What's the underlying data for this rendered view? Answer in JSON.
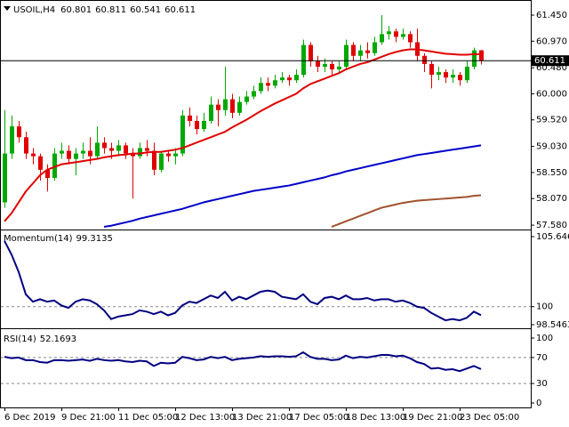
{
  "chart_data": [
    {
      "type": "candlestick",
      "title": "USOIL,H4",
      "categories": [
        "6 Dec 2019",
        null,
        null,
        null,
        null,
        null,
        null,
        null,
        "9 Dec 21:00",
        null,
        null,
        null,
        null,
        null,
        null,
        null,
        "11 Dec 05:00",
        null,
        null,
        null,
        null,
        null,
        null,
        null,
        "12 Dec 13:00",
        null,
        null,
        null,
        null,
        null,
        null,
        null,
        "13 Dec 21:00",
        null,
        null,
        null,
        null,
        null,
        null,
        null,
        "17 Dec 05:00",
        null,
        null,
        null,
        null,
        null,
        null,
        null,
        "18 Dec 13:00",
        null,
        null,
        null,
        null,
        null,
        null,
        null,
        "19 Dec 21:00",
        null,
        null,
        null,
        null,
        null,
        null,
        null,
        "23 Dec 05:00",
        null,
        null,
        null
      ],
      "open": [
        58.0,
        58.9,
        59.4,
        59.2,
        58.9,
        58.85,
        58.6,
        58.45,
        58.9,
        58.95,
        58.8,
        58.9,
        58.95,
        58.85,
        59.1,
        59.0,
        58.95,
        59.05,
        58.9,
        58.85,
        59.0,
        58.95,
        58.6,
        58.9,
        58.85,
        58.9,
        59.6,
        59.5,
        59.35,
        59.5,
        59.8,
        59.7,
        59.9,
        59.65,
        59.85,
        59.95,
        60.05,
        60.2,
        60.15,
        60.25,
        60.3,
        60.25,
        60.35,
        60.9,
        60.6,
        60.5,
        60.55,
        60.45,
        60.5,
        60.9,
        60.7,
        60.8,
        60.75,
        60.95,
        61.1,
        61.15,
        61.05,
        61.1,
        60.95,
        60.7,
        60.55,
        60.35,
        60.4,
        60.3,
        60.35,
        60.25,
        60.5,
        60.801
      ],
      "high": [
        59.7,
        59.6,
        59.5,
        59.3,
        59.0,
        58.9,
        58.7,
        59.0,
        59.1,
        59.05,
        59.0,
        59.1,
        59.2,
        59.4,
        59.2,
        59.1,
        59.15,
        59.1,
        59.0,
        59.1,
        59.15,
        59.1,
        58.95,
        58.95,
        59.0,
        59.7,
        59.75,
        59.6,
        59.65,
        59.95,
        59.9,
        60.5,
        60.0,
        59.95,
        60.05,
        60.15,
        60.3,
        60.3,
        60.35,
        60.4,
        60.35,
        60.45,
        61.0,
        60.95,
        60.7,
        60.65,
        60.6,
        60.6,
        61.0,
        60.95,
        60.9,
        60.95,
        61.05,
        61.45,
        61.25,
        61.2,
        61.2,
        61.15,
        61.2,
        60.75,
        60.6,
        60.5,
        60.45,
        60.45,
        60.4,
        60.6,
        60.85,
        60.811
      ],
      "low": [
        57.9,
        58.8,
        59.1,
        58.8,
        58.7,
        58.4,
        58.2,
        58.4,
        58.8,
        58.7,
        58.5,
        58.8,
        58.7,
        58.8,
        58.9,
        58.8,
        58.85,
        58.8,
        58.07,
        58.8,
        58.85,
        58.5,
        58.55,
        58.75,
        58.7,
        58.85,
        59.4,
        59.25,
        59.3,
        59.45,
        59.4,
        59.6,
        59.55,
        59.6,
        59.8,
        59.9,
        60.0,
        60.05,
        60.1,
        60.2,
        60.15,
        60.2,
        60.3,
        60.5,
        60.4,
        60.4,
        60.35,
        60.4,
        60.45,
        60.6,
        60.6,
        60.65,
        60.7,
        60.9,
        61.0,
        60.95,
        61.0,
        60.85,
        60.6,
        60.4,
        60.1,
        60.25,
        60.2,
        60.2,
        60.15,
        60.2,
        60.45,
        60.541
      ],
      "close": [
        58.9,
        59.4,
        59.2,
        58.9,
        58.85,
        58.6,
        58.45,
        58.9,
        58.95,
        58.8,
        58.9,
        58.95,
        58.85,
        59.1,
        59.0,
        58.95,
        59.05,
        58.9,
        58.85,
        59.0,
        58.95,
        58.6,
        58.9,
        58.85,
        58.9,
        59.6,
        59.5,
        59.35,
        59.5,
        59.8,
        59.7,
        59.9,
        59.65,
        59.85,
        59.95,
        60.05,
        60.2,
        60.15,
        60.25,
        60.3,
        60.25,
        60.35,
        60.9,
        60.6,
        60.5,
        60.55,
        60.45,
        60.5,
        60.9,
        60.7,
        60.8,
        60.75,
        60.95,
        61.1,
        61.15,
        61.05,
        61.1,
        60.95,
        60.7,
        60.55,
        60.35,
        60.4,
        60.3,
        60.35,
        60.25,
        60.5,
        60.801,
        60.611
      ],
      "up_color": "#00a800",
      "down_color": "#e00000",
      "lines": [
        {
          "color": "#e00000",
          "values": [
            57.65,
            57.8,
            58.0,
            58.2,
            58.35,
            58.5,
            58.6,
            58.65,
            58.7,
            58.72,
            58.74,
            58.76,
            58.78,
            58.8,
            58.83,
            58.85,
            58.87,
            58.88,
            58.9,
            58.9,
            58.92,
            58.93,
            58.93,
            58.95,
            58.97,
            59.0,
            59.05,
            59.1,
            59.15,
            59.2,
            59.25,
            59.3,
            59.38,
            59.45,
            59.52,
            59.6,
            59.68,
            59.75,
            59.82,
            59.88,
            59.94,
            60.0,
            60.1,
            60.18,
            60.23,
            60.28,
            60.33,
            60.38,
            60.45,
            60.5,
            60.55,
            60.58,
            60.63,
            60.68,
            60.73,
            60.77,
            60.8,
            60.82,
            60.82,
            60.8,
            60.78,
            60.76,
            60.74,
            60.73,
            60.72,
            60.72,
            60.73,
            60.73
          ]
        },
        {
          "color": "#0000c8",
          "values": [
            null,
            null,
            null,
            null,
            null,
            null,
            null,
            null,
            null,
            null,
            null,
            null,
            null,
            null,
            57.55,
            57.57,
            57.6,
            57.63,
            57.66,
            57.7,
            57.73,
            57.76,
            57.79,
            57.82,
            57.85,
            57.88,
            57.92,
            57.96,
            58.0,
            58.03,
            58.06,
            58.09,
            58.12,
            58.15,
            58.18,
            58.21,
            58.23,
            58.25,
            58.27,
            58.29,
            58.31,
            58.34,
            58.37,
            58.4,
            58.43,
            58.46,
            58.5,
            58.53,
            58.57,
            58.6,
            58.63,
            58.66,
            58.69,
            58.72,
            58.75,
            58.78,
            58.81,
            58.84,
            58.87,
            58.89,
            58.91,
            58.93,
            58.95,
            58.97,
            58.99,
            59.01,
            59.03,
            59.05
          ]
        },
        {
          "color": "#a0522d",
          "values": [
            null,
            null,
            null,
            null,
            null,
            null,
            null,
            null,
            null,
            null,
            null,
            null,
            null,
            null,
            null,
            null,
            null,
            null,
            null,
            null,
            null,
            null,
            null,
            null,
            null,
            null,
            null,
            null,
            null,
            null,
            null,
            null,
            null,
            null,
            null,
            null,
            null,
            null,
            null,
            null,
            null,
            null,
            null,
            null,
            null,
            null,
            57.55,
            57.6,
            57.65,
            57.7,
            57.75,
            57.8,
            57.85,
            57.9,
            57.93,
            57.96,
            57.99,
            58.01,
            58.03,
            58.04,
            58.05,
            58.06,
            58.07,
            58.08,
            58.09,
            58.1,
            58.12,
            58.13
          ]
        }
      ],
      "last_price_line": true,
      "ylim": [
        57.516,
        61.696
      ],
      "yticks": [
        {
          "value": 61.45,
          "label": "61.450"
        },
        {
          "value": 60.97,
          "label": "60.970"
        },
        {
          "value": 60.48,
          "label": "60.480"
        },
        {
          "value": 60.0,
          "label": "60.000"
        },
        {
          "value": 59.52,
          "label": "59.520"
        },
        {
          "value": 59.03,
          "label": "59.030"
        },
        {
          "value": 58.55,
          "label": "58.550"
        },
        {
          "value": 58.07,
          "label": "58.070"
        },
        {
          "value": 57.58,
          "label": "57.580"
        }
      ]
    },
    {
      "type": "line",
      "title": "Momentum(14)",
      "color": "#000080",
      "grid": true,
      "values": [
        105.3,
        104.2,
        102.8,
        101.0,
        100.4,
        100.6,
        100.4,
        100.5,
        100.1,
        99.9,
        100.4,
        100.6,
        100.5,
        100.2,
        99.7,
        99.0,
        99.2,
        99.3,
        99.4,
        99.7,
        99.6,
        99.4,
        99.6,
        99.3,
        99.5,
        100.1,
        100.4,
        100.3,
        100.6,
        100.9,
        100.7,
        101.2,
        100.5,
        100.8,
        100.6,
        100.9,
        101.2,
        101.3,
        101.2,
        100.8,
        100.7,
        100.6,
        101.0,
        100.4,
        100.2,
        100.7,
        100.8,
        100.6,
        100.9,
        100.6,
        100.6,
        100.7,
        100.5,
        100.6,
        100.6,
        100.4,
        100.5,
        100.3,
        100.0,
        99.9,
        99.5,
        99.2,
        98.9,
        99.0,
        98.9,
        99.1,
        99.6,
        99.3135
      ],
      "ylim": [
        98.5463,
        105.6467
      ],
      "yticks": [
        105.6467,
        100,
        98.5463
      ]
    },
    {
      "type": "line",
      "title": "RSI(14)",
      "color": "#000080",
      "grid": true,
      "values": [
        71,
        69,
        70,
        66,
        66,
        63,
        62,
        66,
        66,
        65,
        66,
        67,
        65,
        68,
        66,
        65,
        66,
        64,
        63,
        65,
        64,
        57,
        62,
        61,
        62,
        71,
        69,
        66,
        67,
        71,
        69,
        71,
        66,
        68,
        69,
        70,
        72,
        71,
        72,
        72,
        71,
        72,
        78,
        71,
        68,
        68,
        66,
        67,
        73,
        69,
        71,
        70,
        72,
        74,
        74,
        72,
        73,
        69,
        63,
        60,
        53,
        54,
        51,
        52,
        49,
        53,
        57,
        52.1693
      ],
      "ylim": [
        0,
        100
      ],
      "yticks": [
        100,
        70,
        30,
        0
      ]
    }
  ]
}
